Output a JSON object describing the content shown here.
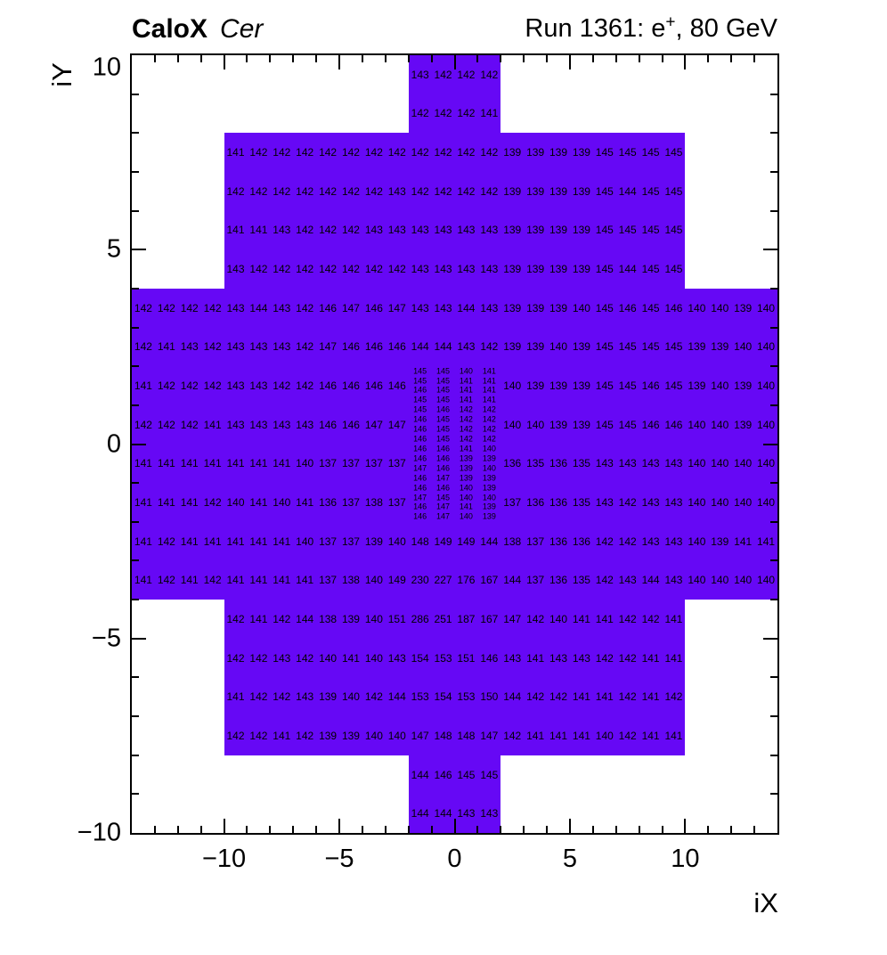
{
  "header": {
    "left_bold": "CaloX",
    "left_italic": "Cer",
    "right_prefix": "Run 1361: e",
    "right_sup": "+",
    "right_suffix": ", 80 GeV"
  },
  "axes": {
    "x_title": "iX",
    "y_title": "iY",
    "x_range": [
      -14,
      14
    ],
    "y_range": [
      -10,
      10
    ],
    "x_major_ticks": [
      -10,
      -5,
      0,
      5,
      10
    ],
    "x_major_labels": [
      "−10",
      "−5",
      "0",
      "5",
      "10"
    ],
    "y_major_ticks": [
      -10,
      -5,
      0,
      5,
      10
    ],
    "y_major_labels": [
      "−10",
      "−5",
      "0",
      "5",
      "10"
    ],
    "x_minor_step": 1,
    "y_minor_step": 1
  },
  "chart_data": {
    "type": "heatmap",
    "fill_color": "#6608F5",
    "text_color": "#000000",
    "grid": false,
    "blocks": [
      {
        "x0": -2,
        "x1": 2,
        "y0": 8,
        "y1": 10
      },
      {
        "x0": -10,
        "x1": 10,
        "y0": 4,
        "y1": 8
      },
      {
        "x0": -14,
        "x1": 14,
        "y0": -4,
        "y1": 4
      },
      {
        "x0": -10,
        "x1": 10,
        "y0": -8,
        "y1": -4
      },
      {
        "x0": -2,
        "x1": 2,
        "y0": -10,
        "y1": -8
      }
    ],
    "coarse_cells": {
      "cell_size": 1,
      "rows": [
        {
          "iy": 9.5,
          "ix_start": -1.5,
          "values": [
            143,
            142,
            142,
            142
          ]
        },
        {
          "iy": 8.5,
          "ix_start": -1.5,
          "values": [
            142,
            142,
            142,
            141
          ]
        },
        {
          "iy": 7.5,
          "ix_start": -9.5,
          "values": [
            141,
            142,
            142,
            142,
            142,
            142,
            142,
            142,
            142,
            142,
            142,
            142,
            139,
            139,
            139,
            139,
            145,
            145,
            145,
            145
          ]
        },
        {
          "iy": 6.5,
          "ix_start": -9.5,
          "values": [
            142,
            142,
            142,
            142,
            142,
            142,
            142,
            143,
            142,
            142,
            142,
            142,
            139,
            139,
            139,
            139,
            145,
            144,
            145,
            145
          ]
        },
        {
          "iy": 5.5,
          "ix_start": -9.5,
          "values": [
            141,
            141,
            143,
            142,
            142,
            142,
            143,
            143,
            143,
            143,
            143,
            143,
            139,
            139,
            139,
            139,
            145,
            145,
            145,
            145
          ]
        },
        {
          "iy": 4.5,
          "ix_start": -9.5,
          "values": [
            143,
            142,
            142,
            142,
            142,
            142,
            142,
            142,
            143,
            143,
            143,
            143,
            139,
            139,
            139,
            139,
            145,
            144,
            145,
            145
          ]
        },
        {
          "iy": 3.5,
          "ix_start": -13.5,
          "values": [
            142,
            142,
            142,
            142,
            143,
            144,
            143,
            142,
            146,
            147,
            146,
            147,
            143,
            143,
            144,
            143,
            139,
            139,
            139,
            140,
            145,
            146,
            145,
            146,
            140,
            140,
            139,
            140
          ]
        },
        {
          "iy": 2.5,
          "ix_start": -13.5,
          "values": [
            142,
            141,
            143,
            142,
            143,
            143,
            143,
            142,
            147,
            146,
            146,
            146,
            144,
            144,
            143,
            142,
            139,
            139,
            140,
            139,
            145,
            145,
            145,
            145,
            139,
            139,
            140,
            140
          ]
        },
        {
          "iy": 1.5,
          "ix_start": -13.5,
          "values": [
            141,
            142,
            142,
            142,
            143,
            143,
            142,
            142,
            146,
            146,
            146,
            146,
            null,
            null,
            null,
            null,
            140,
            139,
            139,
            139,
            145,
            145,
            146,
            145,
            139,
            140,
            139,
            140
          ]
        },
        {
          "iy": 0.5,
          "ix_start": -13.5,
          "values": [
            142,
            142,
            142,
            141,
            143,
            143,
            143,
            143,
            146,
            146,
            147,
            147,
            null,
            null,
            null,
            null,
            140,
            140,
            139,
            139,
            145,
            145,
            146,
            146,
            140,
            140,
            139,
            140
          ]
        },
        {
          "iy": -0.5,
          "ix_start": -13.5,
          "values": [
            141,
            141,
            141,
            141,
            141,
            141,
            141,
            140,
            137,
            137,
            137,
            137,
            null,
            null,
            null,
            null,
            136,
            135,
            136,
            135,
            143,
            143,
            143,
            143,
            140,
            140,
            140,
            140
          ]
        },
        {
          "iy": -1.5,
          "ix_start": -13.5,
          "values": [
            141,
            141,
            141,
            142,
            140,
            141,
            140,
            141,
            136,
            137,
            138,
            137,
            null,
            null,
            null,
            null,
            137,
            136,
            136,
            135,
            143,
            142,
            143,
            143,
            140,
            140,
            140,
            140
          ]
        },
        {
          "iy": -2.5,
          "ix_start": -13.5,
          "values": [
            141,
            142,
            141,
            141,
            141,
            141,
            141,
            140,
            137,
            137,
            139,
            140,
            148,
            149,
            149,
            144,
            138,
            137,
            136,
            136,
            142,
            142,
            143,
            143,
            140,
            139,
            141,
            141
          ]
        },
        {
          "iy": -3.5,
          "ix_start": -13.5,
          "values": [
            141,
            142,
            141,
            142,
            141,
            141,
            141,
            141,
            137,
            138,
            140,
            149,
            230,
            227,
            176,
            167,
            144,
            137,
            136,
            135,
            142,
            143,
            144,
            143,
            140,
            140,
            140,
            140
          ]
        },
        {
          "iy": -4.5,
          "ix_start": -9.5,
          "values": [
            142,
            141,
            142,
            144,
            138,
            139,
            140,
            151,
            286,
            251,
            187,
            167,
            147,
            142,
            140,
            141,
            141,
            142,
            142,
            141
          ]
        },
        {
          "iy": -5.5,
          "ix_start": -9.5,
          "values": [
            142,
            142,
            143,
            142,
            140,
            141,
            140,
            143,
            154,
            153,
            151,
            146,
            143,
            141,
            143,
            143,
            142,
            142,
            141,
            141
          ]
        },
        {
          "iy": -6.5,
          "ix_start": -9.5,
          "values": [
            141,
            142,
            142,
            143,
            139,
            140,
            142,
            144,
            153,
            154,
            153,
            150,
            144,
            142,
            142,
            141,
            141,
            142,
            141,
            142
          ]
        },
        {
          "iy": -7.5,
          "ix_start": -9.5,
          "values": [
            142,
            142,
            141,
            142,
            139,
            139,
            140,
            140,
            147,
            148,
            148,
            147,
            142,
            141,
            141,
            141,
            140,
            142,
            141,
            141
          ]
        },
        {
          "iy": -8.5,
          "ix_start": -1.5,
          "values": [
            144,
            146,
            145,
            145
          ]
        },
        {
          "iy": -9.5,
          "ix_start": -1.5,
          "values": [
            144,
            144,
            143,
            143
          ]
        }
      ]
    },
    "fine_cells": {
      "cell_w": 1,
      "cell_h": 0.25,
      "ix_start": -1.5,
      "iy_start": 1.875,
      "rows": [
        [
          145,
          145,
          140,
          141
        ],
        [
          145,
          145,
          141,
          141
        ],
        [
          146,
          145,
          141,
          141
        ],
        [
          145,
          145,
          141,
          141
        ],
        [
          145,
          146,
          142,
          142
        ],
        [
          146,
          145,
          142,
          142
        ],
        [
          146,
          145,
          142,
          142
        ],
        [
          146,
          145,
          142,
          142
        ],
        [
          146,
          146,
          141,
          140
        ],
        [
          146,
          146,
          139,
          139
        ],
        [
          147,
          146,
          139,
          140
        ],
        [
          146,
          147,
          139,
          139
        ],
        [
          146,
          146,
          140,
          139
        ],
        [
          147,
          145,
          140,
          140
        ],
        [
          146,
          147,
          141,
          139
        ],
        [
          146,
          147,
          140,
          139
        ]
      ]
    }
  }
}
